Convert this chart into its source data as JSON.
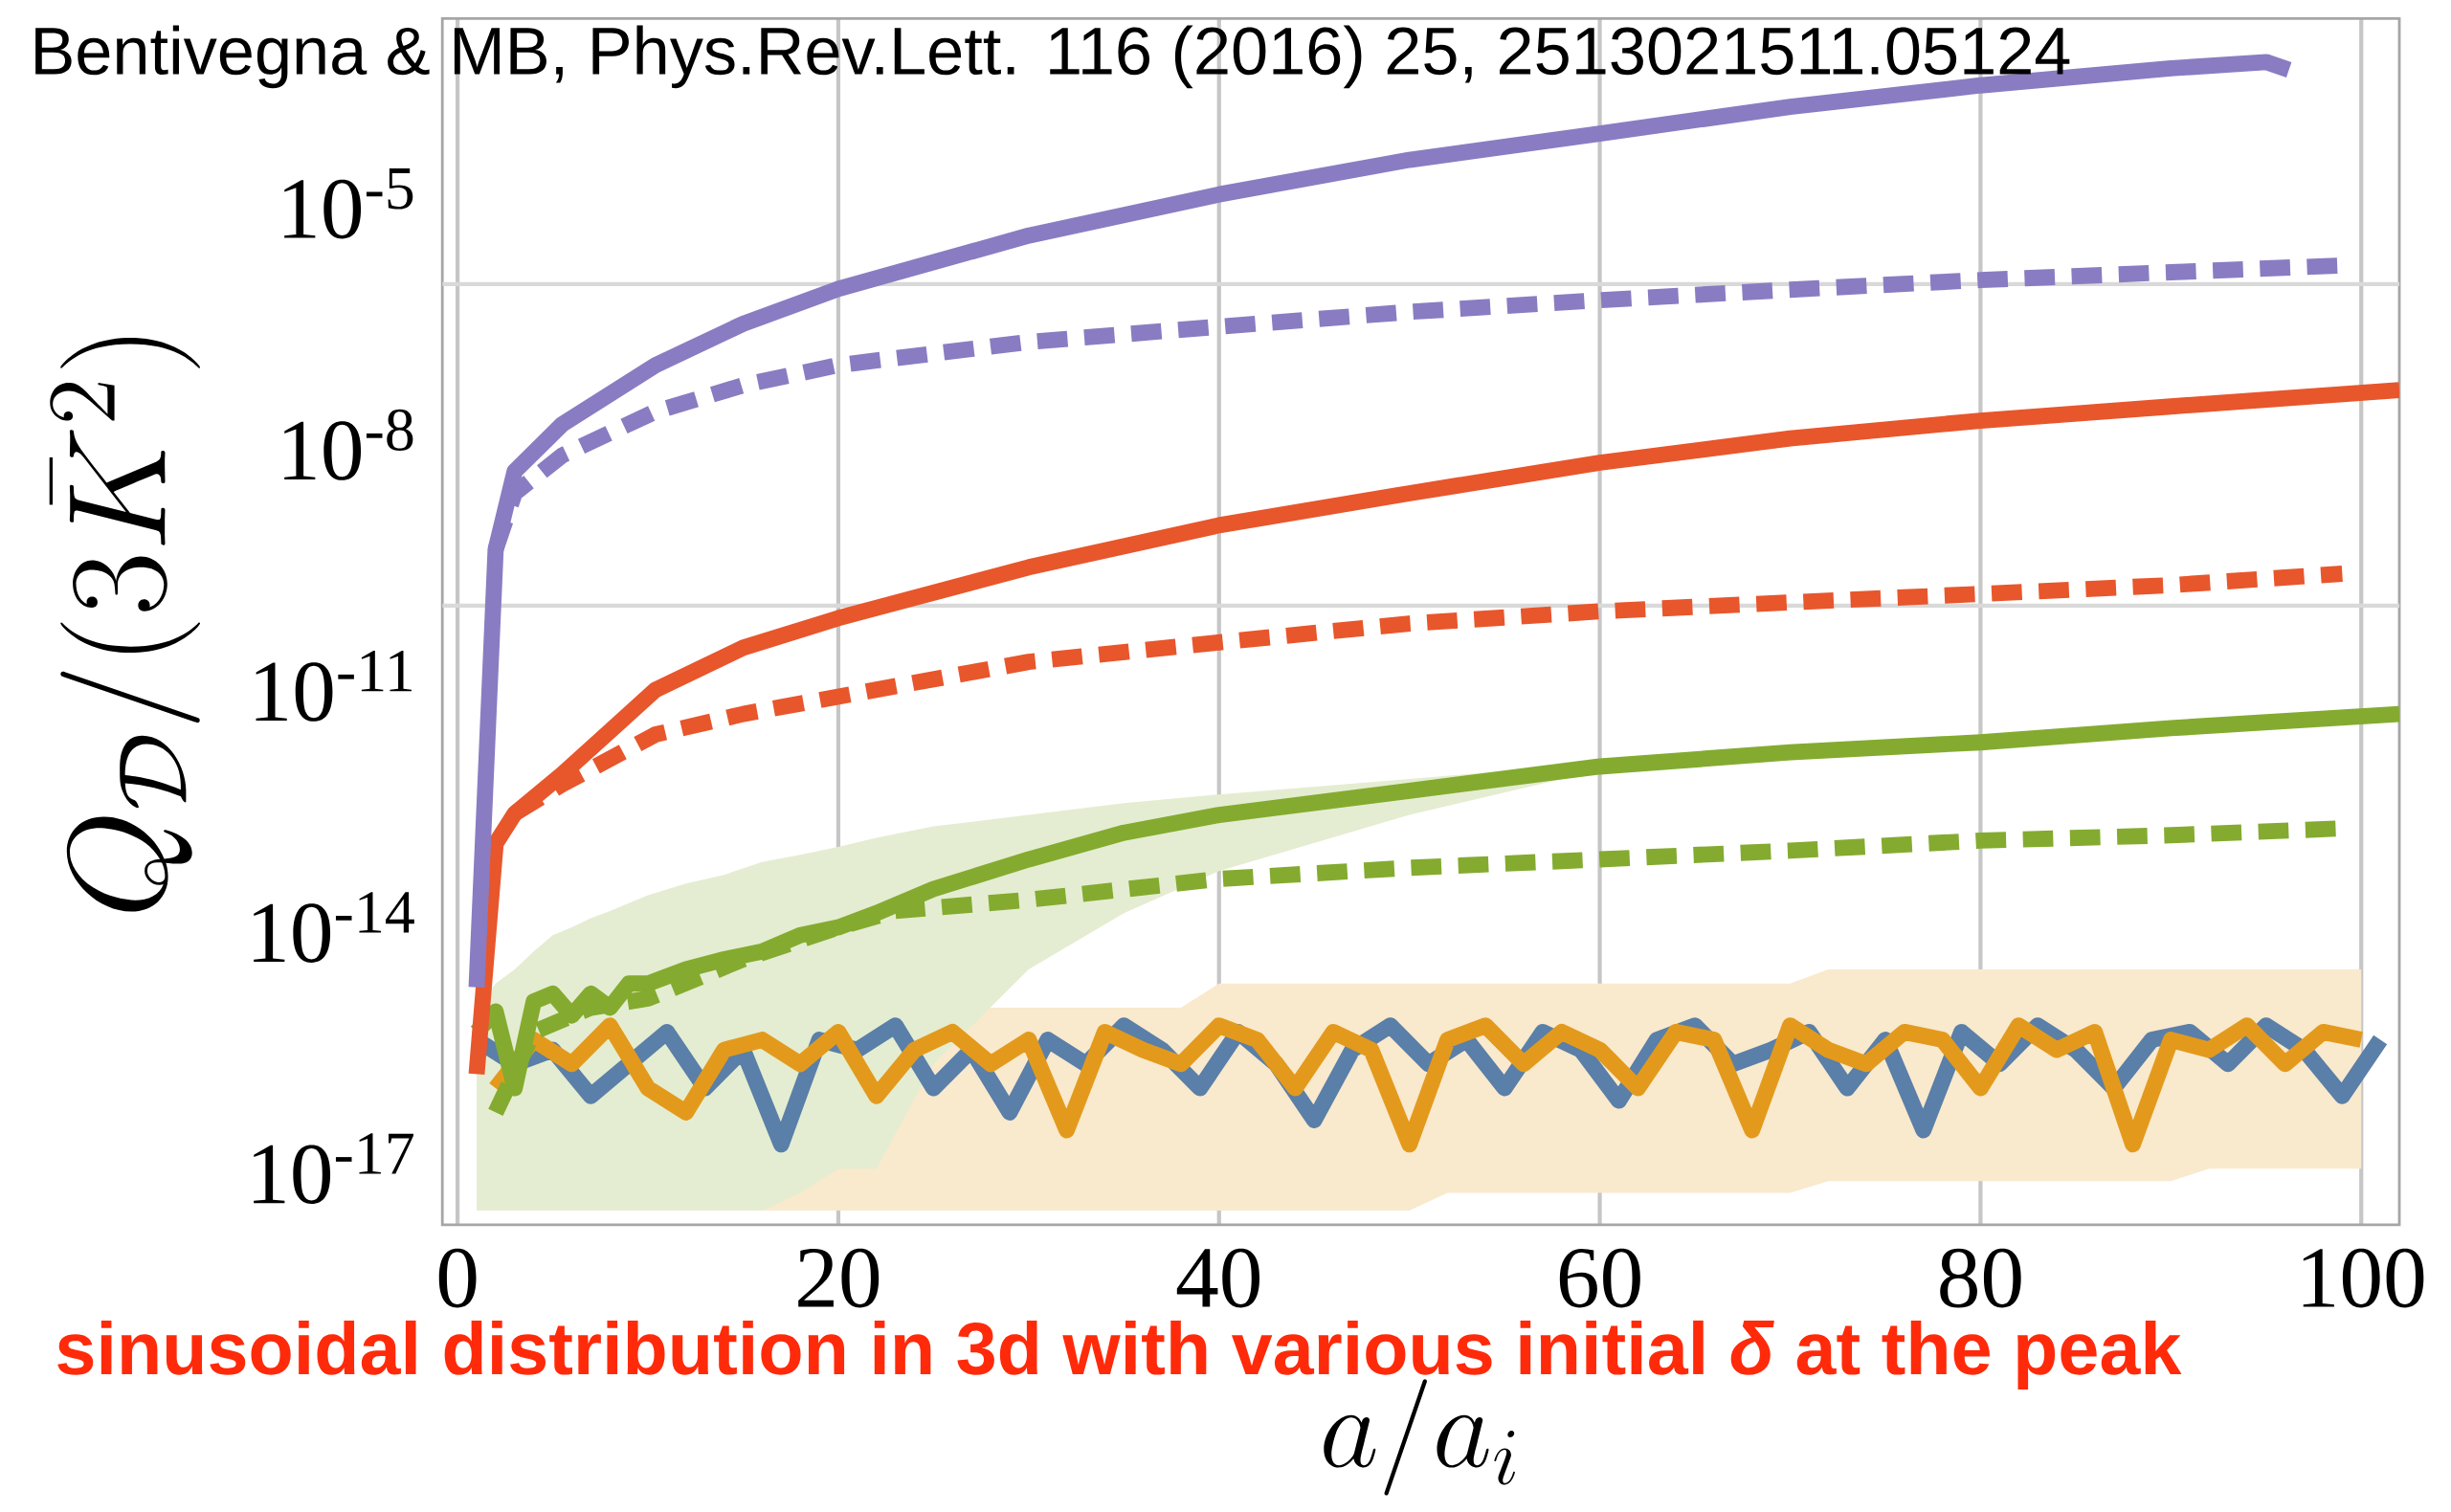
{
  "chart_data": {
    "type": "line",
    "title": "Bentivegna & MB, Phys.Rev.Lett. 116 (2016) 25, 2513021511.05124",
    "annotations": [
      "sinusoidal distribution in 3d with various initial *δ* at the peak"
    ],
    "xlabel": "a/a_i",
    "ylabel": "Q_{\\mathcal{D}}/(3\\bar{K}^2)",
    "xlim": [
      -0.8,
      102
    ],
    "ylim": [
      2e-18,
      0.002
    ],
    "log": "y",
    "grid": "x",
    "xticks": [
      0,
      20,
      40,
      60,
      80,
      100
    ],
    "yticks": [
      {
        "value": 1e-17,
        "label": "10$^{-17}$"
      },
      {
        "value": 1e-14,
        "label": "10$^{-14}$"
      },
      {
        "value": 1e-11,
        "label": "10$^{-11}$"
      },
      {
        "value": 1e-08,
        "label": "10$^{-8}$"
      },
      {
        "value": 1e-05,
        "label": "10$^{-5}$"
      }
    ],
    "ref_lines": [
      {
        "axis": "y",
        "value": 1e-06,
        "color": "#d9d9d9"
      },
      {
        "axis": "y",
        "value": 1e-10,
        "color": "#d9d9d9"
      }
    ],
    "series": [
      {
        "color": "#5a7fa8",
        "line_style": "solid",
        "x": [
          1,
          3,
          5,
          7,
          9,
          11,
          13,
          15,
          17,
          19,
          21,
          23,
          25,
          27,
          29,
          31,
          33,
          35,
          37,
          39,
          41,
          43,
          45,
          47,
          49,
          51,
          53,
          55,
          57,
          59,
          61,
          63,
          65,
          67,
          69,
          71,
          73,
          75,
          77,
          79,
          81,
          83,
          85,
          87,
          89,
          91,
          93,
          95,
          97,
          99,
          101
        ],
        "values": [
          4e-16,
          2e-16,
          3e-16,
          8e-17,
          2e-16,
          5e-16,
          1e-16,
          3e-16,
          2e-17,
          4e-16,
          3e-16,
          6e-16,
          1e-16,
          3e-16,
          5e-17,
          4e-16,
          2e-16,
          6e-16,
          3e-16,
          1e-16,
          5e-16,
          2e-16,
          4e-17,
          3e-16,
          6e-16,
          2e-16,
          4e-16,
          1e-16,
          5e-16,
          3e-16,
          7e-17,
          4e-16,
          6e-16,
          2e-16,
          3e-16,
          5e-16,
          1e-16,
          4e-16,
          3e-17,
          5e-16,
          2e-16,
          6e-16,
          3e-16,
          1e-16,
          4e-16,
          5e-16,
          2e-16,
          6e-16,
          3e-16,
          8e-17,
          4e-16
        ]
      },
      {
        "color": "#e39a1c",
        "line_style": "solid",
        "x": [
          2,
          4,
          6,
          8,
          10,
          12,
          14,
          16,
          18,
          20,
          22,
          24,
          26,
          28,
          30,
          32,
          34,
          36,
          38,
          40,
          42,
          44,
          46,
          48,
          50,
          52,
          54,
          56,
          58,
          60,
          62,
          64,
          66,
          68,
          70,
          72,
          74,
          76,
          78,
          80,
          82,
          84,
          86,
          88,
          90,
          92,
          94,
          96,
          98,
          100
        ],
        "values": [
          1e-16,
          4e-16,
          2e-16,
          6e-16,
          1e-16,
          5e-17,
          3e-16,
          4e-16,
          2e-16,
          5e-16,
          8e-17,
          3e-16,
          5e-16,
          2e-16,
          4e-16,
          3e-17,
          5e-16,
          3e-16,
          2e-16,
          6e-16,
          4e-16,
          1e-16,
          5e-16,
          3e-16,
          2e-17,
          4e-16,
          6e-16,
          2e-16,
          5e-16,
          3e-16,
          1e-16,
          5e-16,
          4e-16,
          3e-17,
          6e-16,
          3e-16,
          2e-16,
          5e-16,
          4e-16,
          1e-16,
          6e-16,
          3e-16,
          5e-16,
          2e-17,
          4e-16,
          3e-16,
          6e-16,
          2e-16,
          5e-16,
          4e-16
        ],
        "upper": [
          1e-15,
          1e-15,
          1e-15,
          1e-15,
          1e-15,
          1e-15,
          1e-15,
          1e-15,
          1e-15,
          1e-15,
          1e-15,
          1e-15,
          1e-15,
          1e-15,
          1e-15,
          1e-15,
          1e-15,
          1e-15,
          1e-15,
          2e-15,
          2e-15,
          2e-15,
          2e-15,
          2e-15,
          2e-15,
          2e-15,
          2e-15,
          2e-15,
          2e-15,
          2e-15,
          2e-15,
          2e-15,
          2e-15,
          2e-15,
          2e-15,
          3e-15,
          3e-15,
          3e-15,
          3e-15,
          3e-15,
          3e-15,
          3e-15,
          3e-15,
          3e-15,
          3e-15,
          3e-15,
          3e-15,
          3e-15,
          3e-15,
          3e-15
        ],
        "lower": [
          3e-18,
          3e-18,
          3e-18,
          3e-18,
          3e-18,
          3e-18,
          3e-18,
          3e-18,
          3e-18,
          3e-18,
          3e-18,
          3e-18,
          3e-18,
          3e-18,
          3e-18,
          3e-18,
          3e-18,
          3e-18,
          3e-18,
          3e-18,
          3e-18,
          3e-18,
          3e-18,
          3e-18,
          3e-18,
          5e-18,
          5e-18,
          5e-18,
          5e-18,
          5e-18,
          5e-18,
          5e-18,
          5e-18,
          5e-18,
          5e-18,
          7e-18,
          7e-18,
          7e-18,
          7e-18,
          7e-18,
          7e-18,
          7e-18,
          7e-18,
          7e-18,
          7e-18,
          1e-17,
          1e-17,
          1e-17,
          1e-17,
          1e-17
        ]
      },
      {
        "color": "#84ab2f",
        "line_style": "solid",
        "x": [
          1,
          2,
          3,
          4,
          5,
          6,
          7,
          8,
          9,
          10,
          12,
          14,
          16,
          18,
          20,
          22,
          25,
          30,
          35,
          40,
          50,
          60,
          70,
          80,
          90,
          102
        ],
        "values": [
          5e-16,
          9e-16,
          1e-16,
          1.2e-15,
          1.5e-15,
          8e-16,
          1.5e-15,
          1e-15,
          2e-15,
          2e-15,
          3e-15,
          4e-15,
          5e-15,
          8e-15,
          1e-14,
          1.5e-14,
          3e-14,
          7e-14,
          1.5e-13,
          2.5e-13,
          5e-13,
          1e-12,
          1.5e-12,
          2e-12,
          3e-12,
          4.5e-12
        ],
        "upper": [
          1e-15,
          2e-15,
          3e-15,
          5e-15,
          8e-15,
          1e-14,
          1.3e-14,
          1.6e-14,
          2e-14,
          2.5e-14,
          3.5e-14,
          4.5e-14,
          6.5e-14,
          8e-14,
          1e-13,
          1.3e-13,
          1.8e-13,
          2.5e-13,
          3.5e-13,
          4.5e-13,
          7e-13,
          1.1e-12,
          1.5e-12,
          2e-12,
          3e-12,
          4.5e-12
        ],
        "lower": [
          3e-18,
          3e-18,
          3e-18,
          3e-18,
          3e-18,
          3e-18,
          3e-18,
          3e-18,
          3e-18,
          3e-18,
          3e-18,
          3e-18,
          3e-18,
          5e-18,
          1e-17,
          1e-17,
          2e-16,
          3e-15,
          1.5e-14,
          5e-14,
          2.5e-13,
          9e-13,
          1.5e-12,
          2e-12,
          3e-12,
          4.5e-12
        ]
      },
      {
        "color": "#84ab2f",
        "line_style": "dashed",
        "x": [
          2,
          4,
          7,
          10,
          15,
          20,
          23,
          30,
          40,
          50,
          60,
          70,
          80,
          90,
          99
        ],
        "values": [
          5e-17,
          5e-16,
          1e-15,
          1.3e-15,
          4e-15,
          1e-14,
          1.6e-14,
          2.2e-14,
          4e-14,
          5.5e-14,
          7e-14,
          9e-14,
          1.2e-13,
          1.4e-13,
          1.7e-13
        ]
      },
      {
        "color": "#e8562c",
        "line_style": "solid",
        "x": [
          1,
          2,
          3,
          5.5,
          10.4,
          15,
          20,
          30,
          40,
          50,
          60,
          70,
          80,
          90,
          102
        ],
        "values": [
          1.5e-16,
          1.1e-13,
          2.6e-13,
          8e-13,
          9e-12,
          3e-11,
          7e-11,
          3e-10,
          1e-09,
          2.5e-09,
          6e-09,
          1.2e-08,
          2e-08,
          3e-08,
          4.8e-08
        ]
      },
      {
        "color": "#e8562c",
        "line_style": "dashed",
        "x": [
          3,
          5.5,
          10.4,
          15,
          20,
          30,
          40,
          50,
          60,
          70,
          80,
          90,
          99
        ],
        "values": [
          2.6e-13,
          6e-13,
          2.5e-12,
          4.5e-12,
          7.4e-12,
          2e-11,
          3.5e-11,
          6e-11,
          8.5e-11,
          1.1e-10,
          1.4e-10,
          1.8e-10,
          2.5e-10
        ]
      },
      {
        "color": "#8a7cc2",
        "line_style": "solid",
        "x": [
          1,
          2,
          3,
          5.5,
          10.4,
          15,
          20,
          30,
          40,
          50,
          60,
          70,
          80,
          90,
          95,
          96.2
        ],
        "values": [
          1.8e-15,
          5e-10,
          4.7e-09,
          1.8e-08,
          9.8e-08,
          3.2e-07,
          8.7e-07,
          4e-06,
          1.3e-05,
          3.5e-05,
          7.4e-05,
          0.00016,
          0.000295,
          0.00048,
          0.000575,
          0.00046
        ]
      },
      {
        "color": "#8a7cc2",
        "line_style": "dashed",
        "x": [
          2,
          3,
          5.5,
          10.4,
          15,
          20,
          30,
          40,
          50,
          60,
          70,
          80,
          90,
          99
        ],
        "values": [
          5e-10,
          2.5e-09,
          7.4e-09,
          2.6e-08,
          5.5e-08,
          9.8e-08,
          1.9e-07,
          2.95e-07,
          4.5e-07,
          6.3e-07,
          8.5e-07,
          1.12e-06,
          1.4e-06,
          1.7e-06
        ]
      }
    ]
  }
}
